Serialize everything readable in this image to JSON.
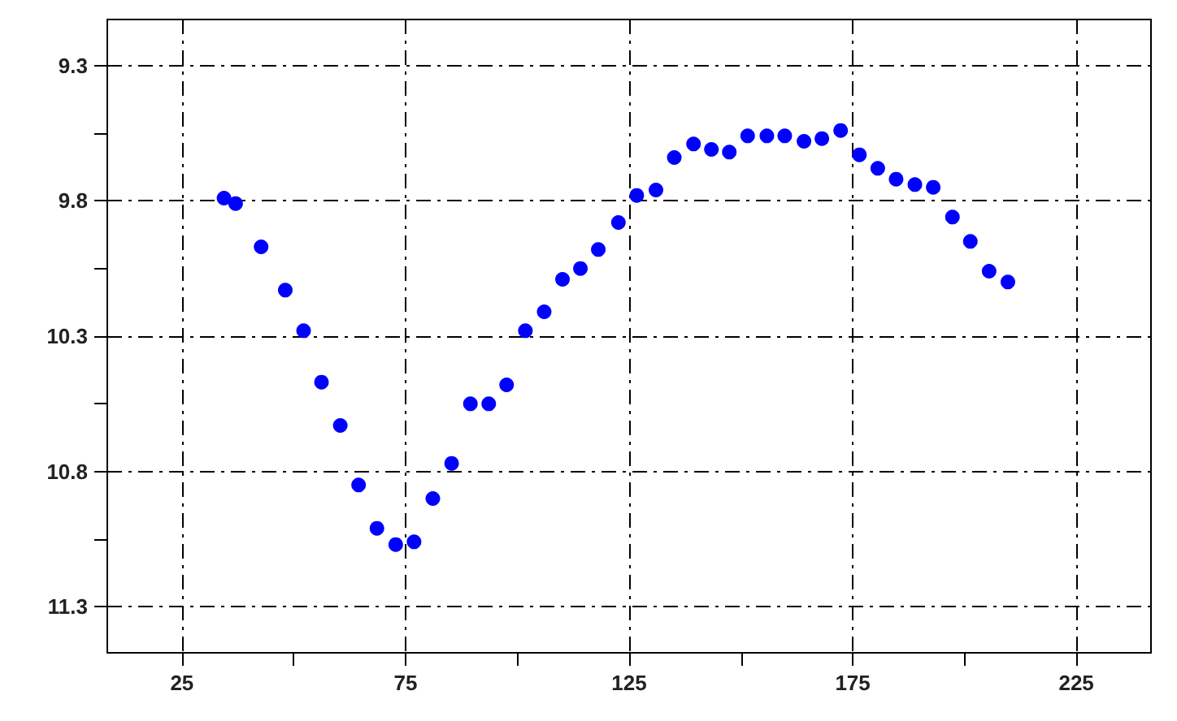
{
  "chart_data": {
    "type": "scatter",
    "x": [
      34.4,
      37.0,
      42.7,
      48.1,
      52.2,
      56.2,
      60.4,
      64.5,
      68.6,
      72.8,
      76.9,
      81.1,
      85.3,
      89.5,
      93.6,
      97.6,
      101.8,
      106.0,
      110.1,
      114.1,
      118.1,
      122.6,
      126.7,
      131.0,
      135.1,
      139.4,
      143.4,
      147.4,
      151.5,
      155.8,
      159.8,
      164.1,
      168.1,
      172.3,
      176.5,
      180.6,
      184.7,
      188.9,
      193.0,
      197.3,
      201.3,
      205.5,
      209.7
    ],
    "series": [
      {
        "color": "#0000ff",
        "values": [
          9.79,
          9.81,
          9.97,
          10.13,
          10.28,
          10.47,
          10.63,
          10.85,
          11.01,
          11.07,
          11.06,
          10.9,
          10.77,
          10.55,
          10.55,
          10.48,
          10.28,
          10.21,
          10.09,
          10.05,
          9.98,
          9.88,
          9.78,
          9.76,
          9.64,
          9.59,
          9.61,
          9.62,
          9.56,
          9.56,
          9.56,
          9.58,
          9.57,
          9.54,
          9.63,
          9.68,
          9.72,
          9.74,
          9.75,
          9.86,
          9.95,
          10.06,
          10.1
        ]
      }
    ],
    "xlim": [
      8.3,
      241.7
    ],
    "xticks": [
      25,
      {
        "value": 50,
        "label": null
      },
      75,
      {
        "value": 100,
        "label": null
      },
      125,
      {
        "value": 150,
        "label": null
      },
      175,
      {
        "value": 200,
        "label": null
      },
      225
    ],
    "ylim": [
      11.47,
      9.13
    ],
    "yticks": [
      9.3,
      {
        "value": 9.55,
        "label": null
      },
      9.8,
      {
        "value": 10.05,
        "label": null
      },
      10.3,
      {
        "value": 10.55,
        "label": null
      },
      10.8,
      {
        "value": 11.05,
        "label": null
      },
      11.3
    ],
    "grid": true,
    "marker": "circle"
  }
}
